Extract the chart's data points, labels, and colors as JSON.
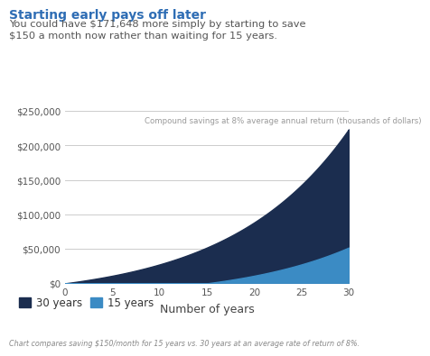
{
  "title": "Starting early pays off later",
  "subtitle": "You could have $171,648 more simply by starting to save\n$150 a month now rather than waiting for 15 years.",
  "annotation": "Compound savings at 8% average annual return (thousands of dollars)",
  "xlabel": "Number of years",
  "footnote": "Chart compares saving $150/month for 15 years vs. 30 years at an average rate of return of 8%.",
  "monthly_payment": 150,
  "annual_rate": 0.08,
  "total_years": 30,
  "delayed_start_years": 15,
  "color_30": "#1b2d4f",
  "color_15": "#3b8bc4",
  "title_color": "#2e6db4",
  "subtitle_color": "#555555",
  "annotation_color": "#999999",
  "footnote_color": "#888888",
  "background_color": "#ffffff",
  "yticks": [
    0,
    50000,
    100000,
    150000,
    200000,
    250000
  ],
  "ytick_labels": [
    "$0",
    "$50,000",
    "$100,000",
    "$150,000",
    "$200,000",
    "$250,000"
  ],
  "xticks": [
    0,
    5,
    10,
    15,
    20,
    25,
    30
  ],
  "ylim": [
    0,
    260000
  ],
  "legend_30": "30 years",
  "legend_15": "15 years"
}
